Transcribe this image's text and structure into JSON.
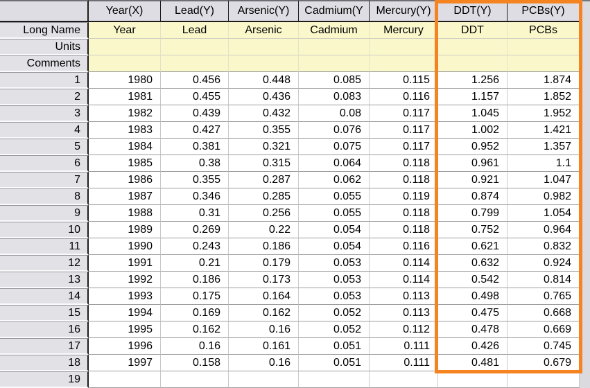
{
  "app": {
    "kind": "worksheet-grid"
  },
  "colors": {
    "highlight_rectangle": "#F5831F",
    "column_header_bg": "#DEDDE3",
    "row_header_bg": "#E2E1E6",
    "label_cell_bg": "#FAF8CB",
    "data_cell_bg": "#FFFFFF"
  },
  "header": {
    "corner": ""
  },
  "columns": [
    {
      "id": "year",
      "heading": "Year(X)",
      "highlighted": false
    },
    {
      "id": "lead",
      "heading": "Lead(Y)",
      "highlighted": false
    },
    {
      "id": "arsenic",
      "heading": "Arsenic(Y)",
      "highlighted": false
    },
    {
      "id": "cadmium",
      "heading": "Cadmium(Y",
      "highlighted": false
    },
    {
      "id": "mercury",
      "heading": "Mercury(Y)",
      "highlighted": false
    },
    {
      "id": "ddt",
      "heading": "DDT(Y)",
      "highlighted": true
    },
    {
      "id": "pcbs",
      "heading": "PCBs(Y)",
      "highlighted": true
    }
  ],
  "label_rows": [
    {
      "id": "long-name",
      "label": "Long Name",
      "values": [
        "Year",
        "Lead",
        "Arsenic",
        "Cadmium",
        "Mercury",
        "DDT",
        "PCBs"
      ]
    },
    {
      "id": "units",
      "label": "Units",
      "values": [
        "",
        "",
        "",
        "",
        "",
        "",
        ""
      ]
    },
    {
      "id": "comments",
      "label": "Comments",
      "values": [
        "",
        "",
        "",
        "",
        "",
        "",
        ""
      ]
    }
  ],
  "rows": [
    {
      "index": "1",
      "values": [
        "1980",
        "0.456",
        "0.448",
        "0.085",
        "0.115",
        "1.256",
        "1.874"
      ]
    },
    {
      "index": "2",
      "values": [
        "1981",
        "0.455",
        "0.436",
        "0.083",
        "0.116",
        "1.157",
        "1.852"
      ]
    },
    {
      "index": "3",
      "values": [
        "1982",
        "0.439",
        "0.432",
        "0.08",
        "0.117",
        "1.045",
        "1.952"
      ]
    },
    {
      "index": "4",
      "values": [
        "1983",
        "0.427",
        "0.355",
        "0.076",
        "0.117",
        "1.002",
        "1.421"
      ]
    },
    {
      "index": "5",
      "values": [
        "1984",
        "0.381",
        "0.321",
        "0.075",
        "0.117",
        "0.952",
        "1.357"
      ]
    },
    {
      "index": "6",
      "values": [
        "1985",
        "0.38",
        "0.315",
        "0.064",
        "0.118",
        "0.961",
        "1.1"
      ]
    },
    {
      "index": "7",
      "values": [
        "1986",
        "0.355",
        "0.287",
        "0.062",
        "0.118",
        "0.921",
        "1.047"
      ]
    },
    {
      "index": "8",
      "values": [
        "1987",
        "0.346",
        "0.285",
        "0.055",
        "0.119",
        "0.874",
        "0.982"
      ]
    },
    {
      "index": "9",
      "values": [
        "1988",
        "0.31",
        "0.256",
        "0.055",
        "0.118",
        "0.799",
        "1.054"
      ]
    },
    {
      "index": "10",
      "values": [
        "1989",
        "0.269",
        "0.22",
        "0.054",
        "0.118",
        "0.752",
        "0.964"
      ]
    },
    {
      "index": "11",
      "values": [
        "1990",
        "0.243",
        "0.186",
        "0.054",
        "0.116",
        "0.621",
        "0.832"
      ]
    },
    {
      "index": "12",
      "values": [
        "1991",
        "0.21",
        "0.179",
        "0.053",
        "0.114",
        "0.632",
        "0.924"
      ]
    },
    {
      "index": "13",
      "values": [
        "1992",
        "0.186",
        "0.173",
        "0.053",
        "0.114",
        "0.542",
        "0.814"
      ]
    },
    {
      "index": "14",
      "values": [
        "1993",
        "0.175",
        "0.164",
        "0.053",
        "0.113",
        "0.498",
        "0.765"
      ]
    },
    {
      "index": "15",
      "values": [
        "1994",
        "0.169",
        "0.162",
        "0.052",
        "0.113",
        "0.475",
        "0.668"
      ]
    },
    {
      "index": "16",
      "values": [
        "1995",
        "0.162",
        "0.16",
        "0.052",
        "0.112",
        "0.478",
        "0.669"
      ]
    },
    {
      "index": "17",
      "values": [
        "1996",
        "0.16",
        "0.161",
        "0.051",
        "0.111",
        "0.426",
        "0.745"
      ]
    },
    {
      "index": "18",
      "values": [
        "1997",
        "0.158",
        "0.16",
        "0.051",
        "0.111",
        "0.481",
        "0.679"
      ]
    },
    {
      "index": "19",
      "values": [
        "",
        "",
        "",
        "",
        "",
        "",
        ""
      ]
    }
  ]
}
